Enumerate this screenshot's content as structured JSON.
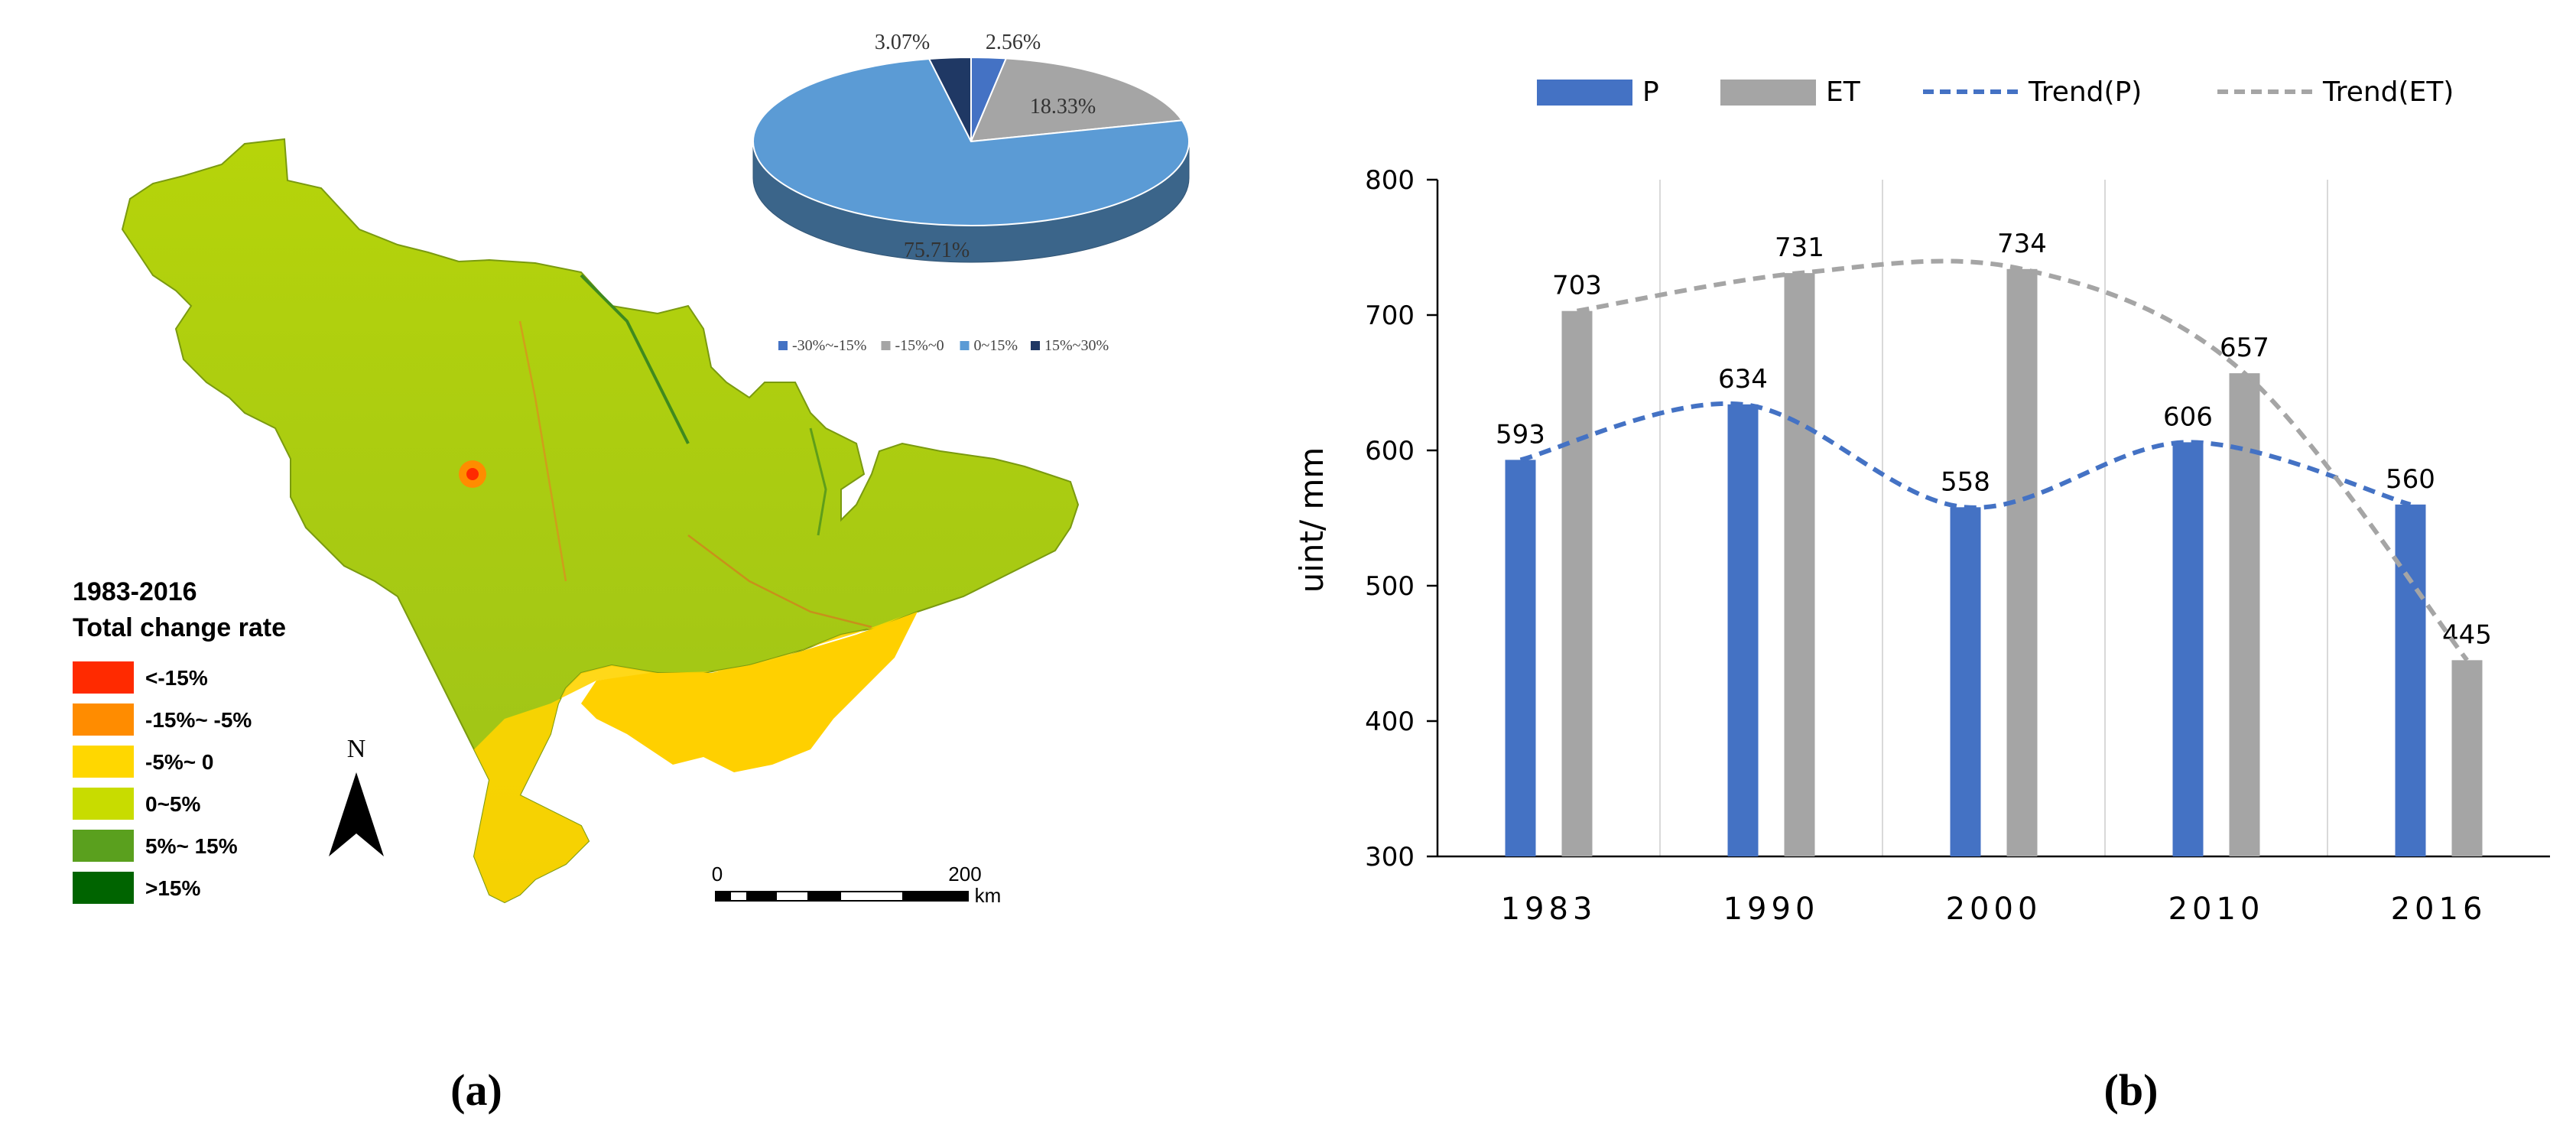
{
  "panel_labels": {
    "a": "(a)",
    "b": "(b)"
  },
  "map": {
    "legend": {
      "title_line1": "1983-2016",
      "title_line2": "Total change rate",
      "items": [
        {
          "label": "<-15%",
          "color": "#ff2a00"
        },
        {
          "label": "-15%~ -5%",
          "color": "#ff8c00"
        },
        {
          "label": "-5%~ 0",
          "color": "#ffd700"
        },
        {
          "label": "0~5%",
          "color": "#c8dc00"
        },
        {
          "label": "5%~ 15%",
          "color": "#5aa01e"
        },
        {
          "label": ">15%",
          "color": "#006400"
        }
      ]
    },
    "north_label": "N",
    "scale": {
      "start": "0",
      "end": "200",
      "unit": "km"
    }
  },
  "chart_data": [
    {
      "type": "pie",
      "title": "",
      "slices": [
        {
          "label": "-30%~-15%",
          "value": 2.56,
          "display": "2.56%",
          "color": "#4472c4"
        },
        {
          "label": "-15%~0",
          "value": 18.33,
          "display": "18.33%",
          "color": "#a5a5a5"
        },
        {
          "label": "0~15%",
          "value": 75.71,
          "display": "75.71%",
          "color": "#5b9bd5"
        },
        {
          "label": "15%~30%",
          "value": 3.07,
          "display": "3.07%",
          "color": "#1f3864"
        }
      ],
      "legend_position": "bottom",
      "style": "3d"
    },
    {
      "type": "bar",
      "title": "",
      "xlabel": "",
      "ylabel": "uint/ mm",
      "categories": [
        "1983",
        "1990",
        "2000",
        "2010",
        "2016"
      ],
      "ylim": [
        300,
        800
      ],
      "yticks": [
        300,
        400,
        500,
        600,
        700,
        800
      ],
      "grid": "vertical",
      "legend_position": "top",
      "series": [
        {
          "name": "P",
          "type": "bar",
          "color": "#4472c4",
          "values": [
            593,
            634,
            558,
            606,
            560
          ]
        },
        {
          "name": "ET",
          "type": "bar",
          "color": "#a5a5a5",
          "values": [
            703,
            731,
            734,
            657,
            445
          ]
        }
      ],
      "trends": [
        {
          "name": "Trend(P)",
          "of": "P",
          "color": "#4472c4",
          "style": "dashed"
        },
        {
          "name": "Trend(ET)",
          "of": "ET",
          "color": "#a5a5a5",
          "style": "dashed"
        }
      ]
    }
  ]
}
